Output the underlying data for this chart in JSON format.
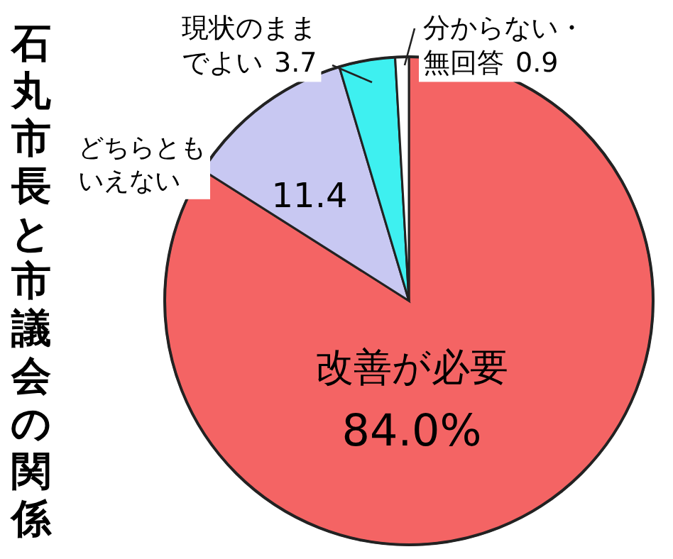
{
  "chart_data": {
    "type": "pie",
    "title": "石丸市長と市議会の関係",
    "categories": [
      "改善が必要",
      "どちらともいえない",
      "現状のままでよい",
      "分からない・無回答"
    ],
    "values": [
      84.0,
      11.4,
      3.7,
      0.9
    ],
    "colors": [
      "#f46464",
      "#c8c8f2",
      "#3ef0f0",
      "#ffffff"
    ],
    "value_labels": [
      "84.0%",
      "11.4",
      "3.7",
      "0.9"
    ]
  }
}
